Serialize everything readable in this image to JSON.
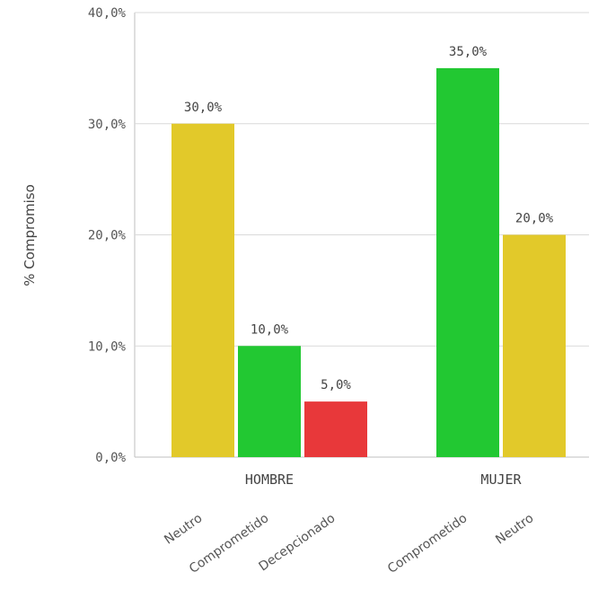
{
  "chart_data": {
    "type": "bar",
    "ylabel": "% Compromiso",
    "ylim": [
      0,
      40
    ],
    "yticks": [
      "0,0%",
      "10,0%",
      "20,0%",
      "30,0%",
      "40,0%"
    ],
    "grid": true,
    "groups": [
      {
        "name": "HOMBRE",
        "bars": [
          {
            "category": "Neutro",
            "value": 30,
            "label": "30,0%",
            "color": "#e2c92a"
          },
          {
            "category": "Comprometido",
            "value": 10,
            "label": "10,0%",
            "color": "#22c832"
          },
          {
            "category": "Decepcionado",
            "value": 5,
            "label": "5,0%",
            "color": "#e8383a"
          }
        ]
      },
      {
        "name": "MUJER",
        "bars": [
          {
            "category": "Comprometido",
            "value": 35,
            "label": "35,0%",
            "color": "#22c832"
          },
          {
            "category": "Neutro",
            "value": 20,
            "label": "20,0%",
            "color": "#e2c92a"
          }
        ]
      }
    ]
  }
}
